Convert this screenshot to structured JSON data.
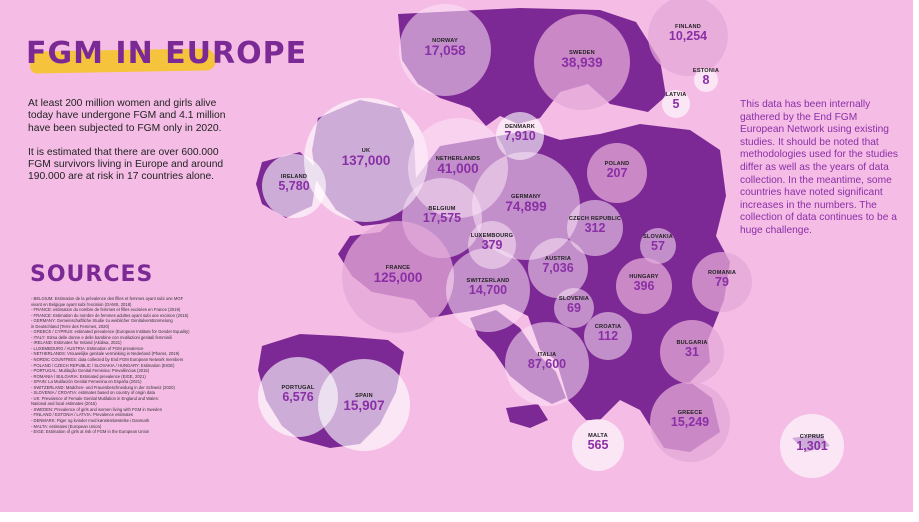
{
  "title": "FGM IN EUROPE",
  "intro": [
    "At least 200 million women and girls alive today have undergone FGM and 4.1 million have been subjected to FGM only in 2020.",
    "It is estimated that there are over 600.000 FGM survivors living in Europe and around 190.000 are at risk in 17 countries alone."
  ],
  "sources_title": "SOURCES",
  "sources": [
    "- BELGIUM: Estimation de la prévalence des filles et femmes ayant subi une MGF",
    "  vivant en Belgique ayant subi l'excision (GAMS, 2018)",
    "- FRANCE: estimation du nombre de femmes et filles excisées en France (2019)",
    "- FRANCE: Estimation du nombre de femmes adultes ayant subi une excision (2015)",
    "- GERMANY: Gemeinschaftliche Studie zu weiblicher Genitalverstümmelung",
    "  in Deutschland (Terre des Femmes, 2020)",
    "- GREECE / CYPRUS: estimated prevalence (European Institute for Gender Equality)",
    "- ITALY: Stima delle donne e delle bambine con mutilazioni genitali femminili",
    "- IRELAND: Estimates for Ireland (Akidwa, 2021)",
    "- LUXEMBOURG / AUSTRIA: Estimation of FGM prevalence",
    "- NETHERLANDS: Vrouwelijke genitale verminking in Nederland (Pharos, 2019)",
    "- NORDIC COUNTRIES: data collected by End FGM European Network members",
    "- POLAND / CZECH REPUBLIC / SLOVAKIA / HUNGARY: Estimation (EIGE)",
    "- PORTUGAL: Mutilação Genital Feminina: Prevalências (2015)",
    "- ROMANIA / BULGARIA: Estimated prevalence (EIGE, 2021)",
    "- SPAIN: La Mutilación Genital Femenina en España (2021)",
    "- SWITZERLAND: Mädchen- und Frauenbeschneidung in der Schweiz (2020)",
    "- SLOVENIA / CROATIA: estimates based on country of origin data",
    "- UK: Prevalence of Female Genital Mutilation in England and Wales:",
    "  National and local estimates (2015)",
    "- SWEDEN: Prevalence of girls and women living with FGM in Sweden",
    "- FINLAND / ESTONIA / LATVIA: Prevalence estimates",
    "- DENMARK: Piger og kvinder med kønslemlæstelse i Danmark",
    "- MALTA: estimates (European Union)",
    "- EIGE: Estimation of girls at risk of FGM in the European Union"
  ],
  "note": "This data has been internally gathered by the End FGM European Network using existing studies. It should be noted that methodologies used for the studies differ as well as the years of data collection. In the meantime, some countries have noted significant increases in the numbers. The collection of data continues to be a huge challenge.",
  "colors": {
    "background": "#f5bde6",
    "land": "#7d2995",
    "accent": "#8a2fa5",
    "title": "#7b2a95",
    "highlight": "#f6c33d"
  },
  "countries": [
    {
      "name": "NORWAY",
      "value": "17,058",
      "survivors": 17058
    },
    {
      "name": "SWEDEN",
      "value": "38,939",
      "survivors": 38939
    },
    {
      "name": "FINLAND",
      "value": "10,254",
      "survivors": 10254
    },
    {
      "name": "ESTONIA",
      "value": "8",
      "survivors": 8
    },
    {
      "name": "LATVIA",
      "value": "5",
      "survivors": 5
    },
    {
      "name": "DENMARK",
      "value": "7,910",
      "survivors": 7910
    },
    {
      "name": "UK",
      "value": "137,000",
      "survivors": 137000
    },
    {
      "name": "IRELAND",
      "value": "5,780",
      "survivors": 5780
    },
    {
      "name": "NETHERLANDS",
      "value": "41,000",
      "survivors": 41000
    },
    {
      "name": "GERMANY",
      "value": "74,899",
      "survivors": 74899
    },
    {
      "name": "POLAND",
      "value": "207",
      "survivors": 207
    },
    {
      "name": "BELGIUM",
      "value": "17,575",
      "survivors": 17575
    },
    {
      "name": "LUXEMBOURG",
      "value": "379",
      "survivors": 379
    },
    {
      "name": "CZECH REPUBLIC",
      "value": "312",
      "survivors": 312
    },
    {
      "name": "SLOVAKIA",
      "value": "57",
      "survivors": 57
    },
    {
      "name": "FRANCE",
      "value": "125,000",
      "survivors": 125000
    },
    {
      "name": "SWITZERLAND",
      "value": "14,700",
      "survivors": 14700
    },
    {
      "name": "AUSTRIA",
      "value": "7,036",
      "survivors": 7036
    },
    {
      "name": "HUNGARY",
      "value": "396",
      "survivors": 396
    },
    {
      "name": "ROMANIA",
      "value": "79",
      "survivors": 79
    },
    {
      "name": "SLOVENIA",
      "value": "69",
      "survivors": 69
    },
    {
      "name": "CROATIA",
      "value": "112",
      "survivors": 112
    },
    {
      "name": "BULGARIA",
      "value": "31",
      "survivors": 31
    },
    {
      "name": "ITALIA",
      "value": "87,600",
      "survivors": 87600
    },
    {
      "name": "PORTUGAL",
      "value": "6,576",
      "survivors": 6576
    },
    {
      "name": "SPAIN",
      "value": "15,907",
      "survivors": 15907
    },
    {
      "name": "MALTA",
      "value": "565",
      "survivors": 565
    },
    {
      "name": "GREECE",
      "value": "15,249",
      "survivors": 15249
    },
    {
      "name": "CYPRUS",
      "value": "1,301",
      "survivors": 1301
    }
  ]
}
